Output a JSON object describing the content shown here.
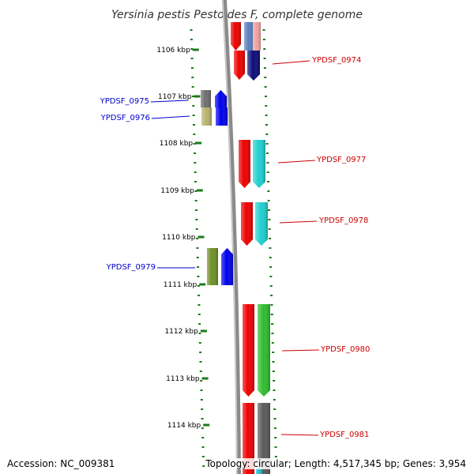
{
  "title": "Yersinia pestis Pestoides F, complete genome",
  "footer": {
    "accession": "Accession: NC_009381",
    "topology": "Topology: circular; Length: 4,517,345 bp; Genes: 3,954"
  },
  "scale": {
    "ticks": [
      "1106 kbp",
      "1107 kbp",
      "1108 kbp",
      "1109 kbp",
      "1110 kbp",
      "1111 kbp",
      "1112 kbp",
      "1113 kbp",
      "1114 kbp"
    ]
  },
  "genes": [
    {
      "label": "YPDSF_0974",
      "strand": "plus",
      "color": "#0b0b7a"
    },
    {
      "label": "YPDSF_0975",
      "strand": "minus",
      "color": "#6e6e6e"
    },
    {
      "label": "YPDSF_0976",
      "strand": "minus",
      "color": "#b8b270"
    },
    {
      "label": "YPDSF_0977",
      "strand": "plus",
      "color": "#1fcfcf"
    },
    {
      "label": "YPDSF_0978",
      "strand": "plus",
      "color": "#1fcfcf"
    },
    {
      "label": "YPDSF_0979",
      "strand": "minus",
      "color": "#6f8f28"
    },
    {
      "label": "YPDSF_0980",
      "strand": "plus",
      "color": "#2ebd2e"
    },
    {
      "label": "YPDSF_0981",
      "strand": "plus",
      "color": "#5a5a5a"
    }
  ],
  "colors": {
    "plus_label": "#cc0000",
    "minus_label": "#0000cc",
    "cds": "#ee0000",
    "minus_arrow": "#0000ee",
    "ticks": "#1a7a1a",
    "backbone": "#808080"
  }
}
